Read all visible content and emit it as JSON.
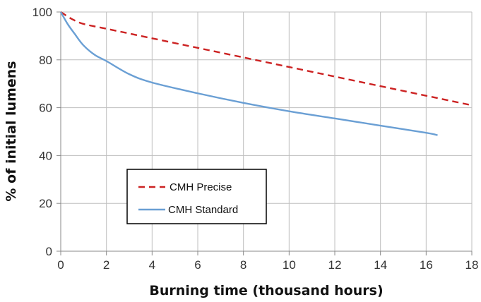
{
  "chart_data": {
    "type": "line",
    "title": "",
    "xlabel": "Burning time (thousand hours)",
    "ylabel": "% of initial lumens",
    "xlim": [
      0,
      18
    ],
    "ylim": [
      0,
      100
    ],
    "x_ticks": [
      "0",
      "2",
      "4",
      "6",
      "8",
      "10",
      "12",
      "14",
      "16",
      "18"
    ],
    "y_ticks": [
      "0",
      "20",
      "40",
      "60",
      "80",
      "100"
    ],
    "grid": true,
    "legend_position": "lower-left",
    "series": [
      {
        "name": "CMH Precise",
        "style": "dashed",
        "color": "#cc2222",
        "x": [
          0,
          0.5,
          1,
          2,
          4,
          6,
          8,
          10,
          12,
          14,
          16,
          18
        ],
        "y": [
          100,
          97,
          95,
          93,
          89,
          85,
          81,
          77,
          73,
          69,
          65,
          61
        ]
      },
      {
        "name": "CMH Standard",
        "style": "solid",
        "color": "#6a9fd4",
        "x": [
          0,
          0.3,
          0.6,
          1,
          1.5,
          2,
          3,
          4,
          6,
          8,
          10,
          12,
          14,
          16,
          16.5
        ],
        "y": [
          100,
          95,
          91,
          86,
          82,
          79.5,
          74,
          70.5,
          66,
          62,
          58.5,
          55.5,
          52.5,
          49.5,
          48.5
        ]
      }
    ]
  }
}
